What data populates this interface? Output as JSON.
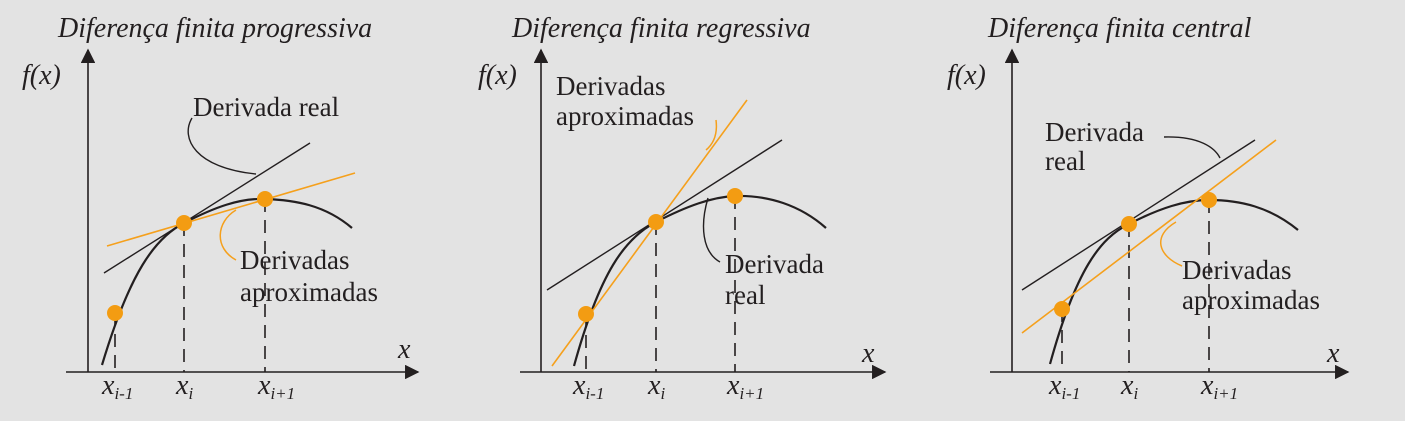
{
  "colors": {
    "background": "#e3e3e3",
    "ink": "#231f20",
    "orange": "#f39c12",
    "orange_line": "#f5a01c"
  },
  "panels": [
    {
      "title": "Diferença finita progressiva",
      "y_axis_label": "f(x)",
      "x_axis_label": "x",
      "ticks": [
        {
          "base": "x",
          "sub": "i-1"
        },
        {
          "base": "x",
          "sub": "i"
        },
        {
          "base": "x",
          "sub": "i+1"
        }
      ],
      "label_real": [
        "Derivada real"
      ],
      "label_approx": [
        "Derivadas",
        "aproximadas"
      ]
    },
    {
      "title": "Diferença finita regressiva",
      "y_axis_label": "f(x)",
      "x_axis_label": "x",
      "ticks": [
        {
          "base": "x",
          "sub": "i-1"
        },
        {
          "base": "x",
          "sub": "i"
        },
        {
          "base": "x",
          "sub": "i+1"
        }
      ],
      "label_real": [
        "Derivada",
        "real"
      ],
      "label_approx": [
        "Derivadas",
        "aproximadas"
      ]
    },
    {
      "title": "Diferença finita central",
      "y_axis_label": "f(x)",
      "x_axis_label": "x",
      "ticks": [
        {
          "base": "x",
          "sub": "i-1"
        },
        {
          "base": "x",
          "sub": "i"
        },
        {
          "base": "x",
          "sub": "i+1"
        }
      ],
      "label_real": [
        "Derivada",
        "real"
      ],
      "label_approx": [
        "Derivadas",
        "aproximadas"
      ]
    }
  ]
}
